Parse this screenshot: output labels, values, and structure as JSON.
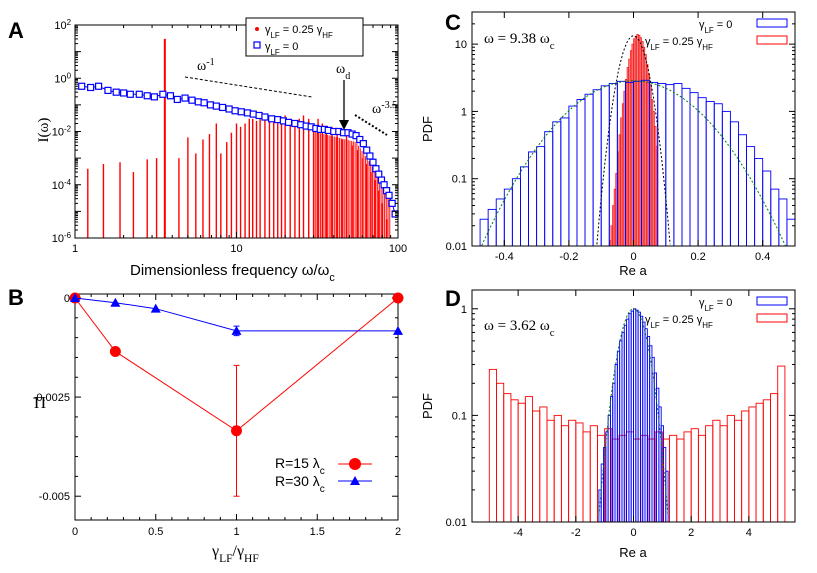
{
  "chart_data": [
    {
      "panel": "A",
      "type": "scatter",
      "xscale": "log",
      "yscale": "log",
      "xlim": [
        1,
        100
      ],
      "ylim": [
        1e-06,
        100
      ],
      "xlabel": "Dimensionless frequency",
      "xlabel_sym": "ω/ω",
      "xlabel_sub": "c",
      "ylabel": "I(ω)",
      "xticks": [
        {
          "v": 1,
          "t": "1"
        },
        {
          "v": 10,
          "t": "10"
        },
        {
          "v": 100,
          "t": "100"
        }
      ],
      "yticks": [
        {
          "v": 1e-06,
          "b": "10",
          "e": "-6"
        },
        {
          "v": 0.0001,
          "b": "10",
          "e": "-4"
        },
        {
          "v": 0.01,
          "b": "10",
          "e": "-2"
        },
        {
          "v": 1,
          "b": "10",
          "e": "0"
        },
        {
          "v": 100,
          "b": "10",
          "e": "2"
        }
      ],
      "legend": [
        {
          "label": "γ",
          "sub": "LF",
          "rest": " = 0.25 γ",
          "sub2": "HF",
          "color": "#ff0000",
          "marker": "dot"
        },
        {
          "label": "γ",
          "sub": "LF",
          "rest": " = 0",
          "sub2": "",
          "color": "#0000ff",
          "marker": "square"
        }
      ],
      "annotations": [
        {
          "text": "ω",
          "sup": "-1"
        },
        {
          "text": "ω",
          "sub": "d"
        },
        {
          "text": "ω",
          "sup": "-3.5"
        }
      ],
      "series": [
        {
          "name": "γLF = 0.25 γHF",
          "color": "#ff0000",
          "style": "impulses",
          "x": [
            1.2,
            1.5,
            1.9,
            2.3,
            2.8,
            3.2,
            3.6,
            4.4,
            5,
            5.6,
            6.2,
            6.8,
            7.5,
            8,
            8.7,
            9.3,
            10,
            10.6,
            11.3,
            12,
            12.6,
            13.3,
            14,
            15,
            16,
            17,
            18,
            19,
            20,
            21.5,
            23,
            24.5,
            26,
            28,
            30,
            32,
            34,
            36,
            39,
            42,
            45,
            48,
            52,
            56,
            60,
            64,
            68,
            72,
            76,
            80,
            85
          ],
          "y": [
            0.0004,
            0.0006,
            0.0007,
            0.0003,
            0.0009,
            0.001,
            30,
            0.001,
            0.006,
            0.0015,
            0.005,
            0.008,
            0.02,
            0.0015,
            0.004,
            0.009,
            0.02,
            0.015,
            0.02,
            0.03,
            0.03,
            0.025,
            0.03,
            0.035,
            0.04,
            0.03,
            0.025,
            0.035,
            0.04,
            0.03,
            0.02,
            0.03,
            0.04,
            0.03,
            0.02,
            0.03,
            0.02,
            0.01,
            0.015,
            0.01,
            0.005,
            0.008,
            0.003,
            0.002,
            0.001,
            0.0006,
            0.0003,
            0.00015,
            6e-05,
            2e-05,
            5e-06
          ]
        },
        {
          "name": "γLF = 0",
          "color": "#0000ff",
          "style": "squares-line",
          "x": [
            1.1,
            1.25,
            1.4,
            1.6,
            1.8,
            2.0,
            2.2,
            2.5,
            2.8,
            3.1,
            3.5,
            3.9,
            4.3,
            4.8,
            5.3,
            5.8,
            6.3,
            6.9,
            7.5,
            8.2,
            9,
            9.8,
            10.7,
            11.7,
            12.7,
            13.8,
            15,
            16.5,
            18,
            19.5,
            21,
            23,
            25,
            27,
            29,
            31,
            33,
            35,
            37,
            40,
            43,
            46,
            49,
            52,
            55,
            58,
            61,
            64,
            67,
            70,
            73,
            76,
            79,
            82,
            85,
            88,
            92,
            96
          ],
          "y": [
            0.5,
            0.45,
            0.5,
            0.35,
            0.3,
            0.28,
            0.25,
            0.25,
            0.22,
            0.2,
            0.25,
            0.22,
            0.16,
            0.18,
            0.15,
            0.13,
            0.12,
            0.1,
            0.09,
            0.08,
            0.07,
            0.06,
            0.055,
            0.05,
            0.045,
            0.04,
            0.035,
            0.03,
            0.028,
            0.025,
            0.022,
            0.02,
            0.018,
            0.016,
            0.015,
            0.013,
            0.012,
            0.012,
            0.011,
            0.01,
            0.01,
            0.009,
            0.009,
            0.008,
            0.007,
            0.005,
            0.0035,
            0.002,
            0.0012,
            0.0007,
            0.0004,
            0.00025,
            0.00015,
            0.0001,
            6e-05,
            4e-05,
            2e-05,
            8e-06
          ]
        }
      ]
    },
    {
      "panel": "B",
      "type": "line",
      "xlim": [
        0,
        2
      ],
      "ylim": [
        -0.0056,
        0.0001
      ],
      "xlabel_sym": "γ",
      "xlabel_sub1": "LF",
      "xlabel_sep": "/γ",
      "xlabel_sub2": "HF",
      "ylabel": "Π",
      "xticks": [
        {
          "v": 0,
          "t": "0"
        },
        {
          "v": 0.5,
          "t": "0.5"
        },
        {
          "v": 1,
          "t": "1"
        },
        {
          "v": 1.5,
          "t": "1.5"
        },
        {
          "v": 2,
          "t": "2"
        }
      ],
      "yticks": [
        {
          "v": 0,
          "t": "0"
        },
        {
          "v": -0.0025,
          "t": "-0.0025"
        },
        {
          "v": -0.005,
          "t": "-0.005"
        }
      ],
      "series": [
        {
          "name": "R=15 λc",
          "label": "R=15 λ",
          "sub": "c",
          "color": "#ff0000",
          "marker": "circle",
          "x": [
            0,
            0.25,
            1,
            2
          ],
          "y": [
            0,
            -0.00135,
            -0.00335,
            0
          ],
          "err": [
            0,
            8e-05,
            0.00165,
            0
          ]
        },
        {
          "name": "R=30 λc",
          "label": "R=30 λ",
          "sub": "c",
          "color": "#0000ff",
          "marker": "triangle",
          "x": [
            0,
            0.25,
            0.5,
            1,
            2
          ],
          "y": [
            0,
            -0.00012,
            -0.00027,
            -0.00083,
            -0.00083
          ],
          "err": [
            0,
            0,
            0,
            0.00012,
            0
          ]
        }
      ]
    },
    {
      "panel": "C",
      "type": "bar",
      "title": "ω = 9.38 ω",
      "title_sub": "c",
      "xlabel": "Re a",
      "ylabel": "PDF",
      "xlim": [
        -0.5,
        0.5
      ],
      "ylim": [
        0.01,
        30
      ],
      "yscale": "log",
      "xticks": [
        {
          "v": -0.4,
          "t": "-0.4"
        },
        {
          "v": -0.2,
          "t": "-0.2"
        },
        {
          "v": 0,
          "t": "0"
        },
        {
          "v": 0.2,
          "t": "0.2"
        },
        {
          "v": 0.4,
          "t": "0.4"
        }
      ],
      "yticks": [
        {
          "v": 0.01,
          "t": "0.01"
        },
        {
          "v": 0.1,
          "t": "0.1"
        },
        {
          "v": 1,
          "t": "1"
        },
        {
          "v": 10,
          "t": "10"
        }
      ],
      "legend": [
        {
          "label": "γ",
          "sub": "LF",
          "rest": " = 0",
          "sub2": "",
          "color": "#0000ff"
        },
        {
          "label": "γ",
          "sub": "LF",
          "rest": " = 0.25 γ",
          "sub2": "HF",
          "color": "#ff0000"
        }
      ],
      "gaussians": [
        {
          "sigma": 0.14,
          "peak": 2.85,
          "color": "#008000"
        },
        {
          "sigma": 0.03,
          "peak": 13.3,
          "color": "#000000"
        }
      ],
      "series": [
        {
          "name": "γLF = 0",
          "color": "#0000ff",
          "style": "outline",
          "bin_width": 0.025,
          "bin_start": -0.475,
          "values": [
            0.025,
            0.035,
            0.05,
            0.07,
            0.1,
            0.15,
            0.25,
            0.3,
            0.5,
            0.7,
            0.8,
            1.2,
            1.5,
            1.8,
            2.1,
            2.4,
            2.6,
            2.8,
            2.7,
            2.8,
            2.9,
            2.7,
            2.6,
            2.5,
            2.6,
            2.2,
            1.9,
            1.6,
            1.4,
            1.3,
            1.0,
            0.7,
            0.45,
            0.3,
            0.2,
            0.13,
            0.07,
            0.05,
            0.025
          ]
        },
        {
          "name": "γLF = 0.25 γHF",
          "color": "#ff0000",
          "style": "filled",
          "bin_width": 0.005,
          "bin_start": -0.075,
          "values": [
            0.012,
            0.02,
            0.04,
            0.07,
            0.12,
            0.25,
            0.45,
            0.8,
            1.3,
            2.0,
            3.0,
            4.5,
            6.0,
            8.0,
            10.0,
            12.0,
            13.0,
            14.0,
            13.5,
            12.5,
            11.0,
            9.0,
            7.0,
            5.0,
            3.5,
            2.5,
            1.5,
            1.0,
            0.6,
            0.3
          ]
        }
      ]
    },
    {
      "panel": "D",
      "type": "bar",
      "title": "ω = 3.62 ω",
      "title_sub": "c",
      "xlabel": "Re a",
      "ylabel": "PDF",
      "xlim": [
        -5.6,
        5.6
      ],
      "ylim": [
        0.01,
        1.5
      ],
      "yscale": "log",
      "xticks": [
        {
          "v": -4,
          "t": "-4"
        },
        {
          "v": -2,
          "t": "-2"
        },
        {
          "v": 0,
          "t": "0"
        },
        {
          "v": 2,
          "t": "2"
        },
        {
          "v": 4,
          "t": "4"
        }
      ],
      "yticks": [
        {
          "v": 0.01,
          "t": "0.01"
        },
        {
          "v": 0.1,
          "t": "0.1"
        },
        {
          "v": 1,
          "t": "1"
        }
      ],
      "legend": [
        {
          "label": "γ",
          "sub": "LF",
          "rest": " = 0",
          "sub2": "",
          "color": "#0000ff"
        },
        {
          "label": "γ",
          "sub": "LF",
          "rest": " = 0.25 γ",
          "sub2": "HF",
          "color": "#ff0000"
        }
      ],
      "gaussians": [
        {
          "sigma": 0.4,
          "peak": 1.0,
          "color": "#008000"
        }
      ],
      "series": [
        {
          "name": "γLF = 0.25 γHF",
          "color": "#ff0000",
          "style": "outline",
          "bin_width": 0.25,
          "bin_start": -5.0,
          "values": [
            0.27,
            0.2,
            0.16,
            0.14,
            0.13,
            0.15,
            0.11,
            0.12,
            0.09,
            0.1,
            0.08,
            0.09,
            0.085,
            0.07,
            0.08,
            0.065,
            0.075,
            0.06,
            0.065,
            0.07,
            0.06,
            0.065,
            0.06,
            0.07,
            0.06,
            0.065,
            0.06,
            0.07,
            0.075,
            0.065,
            0.08,
            0.09,
            0.08,
            0.1,
            0.09,
            0.11,
            0.12,
            0.13,
            0.14,
            0.16,
            0.29
          ]
        },
        {
          "name": "γLF = 0",
          "color": "#0000ff",
          "style": "outline",
          "bin_width": 0.08,
          "bin_start": -1.2,
          "values": [
            0.02,
            0.035,
            0.05,
            0.07,
            0.1,
            0.15,
            0.2,
            0.3,
            0.4,
            0.5,
            0.6,
            0.7,
            0.8,
            0.9,
            0.95,
            1.0,
            0.97,
            0.93,
            0.85,
            0.75,
            0.65,
            0.55,
            0.45,
            0.35,
            0.25,
            0.18,
            0.12,
            0.08,
            0.05,
            0.03
          ]
        }
      ]
    }
  ]
}
